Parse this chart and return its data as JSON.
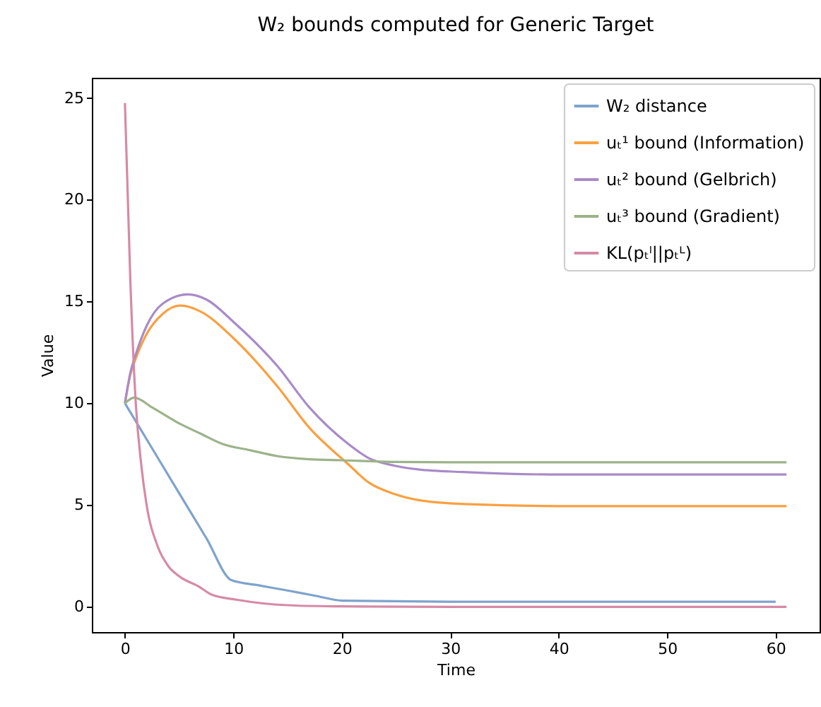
{
  "chart_data": {
    "type": "line",
    "title": "W₂ bounds computed for Generic Target",
    "xlabel": "Time",
    "ylabel": "Value",
    "xlim": [
      -3.05,
      64.05
    ],
    "ylim": [
      -1.24,
      25.99
    ],
    "xticks": [
      0,
      10,
      20,
      30,
      40,
      50,
      60
    ],
    "yticks": [
      0,
      5,
      10,
      15,
      20,
      25
    ],
    "grid": false,
    "legend": "top right",
    "marker": "none",
    "line_style": "solid",
    "series": [
      {
        "name": "W₂ distance",
        "color": "#7ea3cc",
        "x": [
          0,
          2.5,
          5,
          7.5,
          9.85,
          12.5,
          15,
          17.5,
          20.1,
          30,
          60
        ],
        "values": [
          10,
          7.79,
          5.58,
          3.38,
          1.3,
          1.04,
          0.8,
          0.55,
          0.3,
          0.25,
          0.25
        ]
      },
      {
        "name": "uₜ¹ bound (Information)",
        "color": "#f9a040",
        "x": [
          0,
          0.5,
          1,
          2,
          3.5,
          5.1,
          7,
          10,
          14.1,
          17,
          20.6,
          22.5,
          24.8,
          27,
          31.2,
          40,
          50,
          61
        ],
        "values": [
          10,
          11.4,
          12.2,
          13.4,
          14.4,
          14.8,
          14.5,
          13.2,
          10.8,
          8.8,
          7.0,
          6.1,
          5.55,
          5.25,
          5.05,
          4.95,
          4.95,
          4.95
        ]
      },
      {
        "name": "uₜ² bound (Gelbrich)",
        "color": "#a98bc8",
        "x": [
          0,
          0.5,
          1,
          2,
          3.5,
          5.8,
          7.5,
          10,
          14.1,
          17,
          20.6,
          22.5,
          24.8,
          27,
          31.2,
          40,
          50,
          61
        ],
        "values": [
          10,
          11.5,
          12.4,
          13.8,
          14.9,
          15.35,
          15.1,
          14.0,
          11.8,
          9.8,
          8.0,
          7.3,
          6.94,
          6.75,
          6.62,
          6.5,
          6.5,
          6.5
        ]
      },
      {
        "name": "uₜ³ bound (Gradient)",
        "color": "#9cb38a",
        "x": [
          0,
          0.86,
          2.5,
          4.7,
          7,
          9,
          11.5,
          14.1,
          17,
          20,
          25,
          30,
          40,
          61
        ],
        "values": [
          10,
          10.28,
          9.8,
          9.1,
          8.5,
          8.0,
          7.7,
          7.4,
          7.25,
          7.2,
          7.12,
          7.1,
          7.1,
          7.1
        ]
      },
      {
        "name": "KL(pₜˡ||pₜᴸ)",
        "color": "#d68aa6",
        "x": [
          0,
          0.5,
          1,
          1.5,
          2,
          3,
          4,
          5,
          6.8,
          8,
          10.3,
          15,
          20,
          30,
          61
        ],
        "values": [
          24.75,
          16,
          10,
          7,
          5,
          3,
          2,
          1.5,
          1.0,
          0.6,
          0.35,
          0.08,
          0.02,
          0,
          0
        ]
      }
    ]
  }
}
